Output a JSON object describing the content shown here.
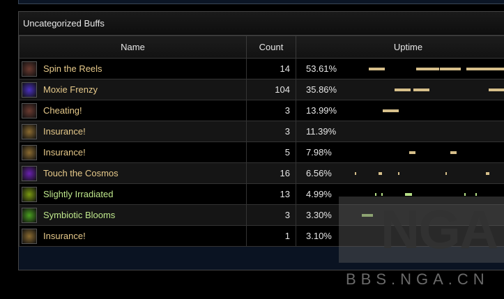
{
  "panel_title": "Uncategorized Buffs",
  "columns": [
    "Name",
    "Count",
    "Uptime"
  ],
  "colors": {
    "tan": "#d6bf8a",
    "green": "#b6df86",
    "name_tan": "#e6c98a",
    "name_green": "#bfe88c"
  },
  "rows": [
    {
      "name": "Spin the Reels",
      "icon": "spin-the-reels-icon",
      "iconColor": "#6a3a30",
      "count": "14",
      "uptime": "53.61%",
      "color": "tan",
      "segments": [
        [
          0.143,
          0.234
        ],
        [
          0.413,
          0.544
        ],
        [
          0.548,
          0.667
        ],
        [
          0.698,
          0.925
        ]
      ]
    },
    {
      "name": "Moxie Frenzy",
      "icon": "moxie-frenzy-icon",
      "iconColor": "#4a30c0",
      "count": "104",
      "uptime": "35.86%",
      "color": "tan",
      "segments": [
        [
          0.29,
          0.381
        ],
        [
          0.397,
          0.488
        ],
        [
          0.825,
          0.913
        ]
      ]
    },
    {
      "name": "Cheating!",
      "icon": "cheating-icon",
      "iconColor": "#6a3a30",
      "count": "3",
      "uptime": "13.99%",
      "color": "tan",
      "segments": [
        [
          0.222,
          0.313
        ]
      ]
    },
    {
      "name": "Insurance!",
      "icon": "insurance-scroll-icon",
      "iconColor": "#8a6a30",
      "count": "3",
      "uptime": "11.39%",
      "color": "tan",
      "segments": []
    },
    {
      "name": "Insurance!",
      "icon": "insurance-scroll-icon",
      "iconColor": "#8a6a30",
      "count": "5",
      "uptime": "7.98%",
      "color": "tan",
      "segments": [
        [
          0.373,
          0.409
        ],
        [
          0.607,
          0.643
        ]
      ]
    },
    {
      "name": "Touch the Cosmos",
      "icon": "touch-the-cosmos-icon",
      "iconColor": "#6a20b0",
      "count": "16",
      "uptime": "6.56%",
      "color": "tan",
      "segments": [
        [
          0.063,
          0.071
        ],
        [
          0.198,
          0.218
        ],
        [
          0.309,
          0.317
        ],
        [
          0.579,
          0.583
        ],
        [
          0.809,
          0.829
        ]
      ]
    },
    {
      "name": "Slightly Irradiated",
      "icon": "slightly-irradiated-icon",
      "iconColor": "#7a9a10",
      "count": "13",
      "uptime": "4.99%",
      "color": "green",
      "segments": [
        [
          0.179,
          0.187
        ],
        [
          0.214,
          0.222
        ],
        [
          0.349,
          0.389
        ],
        [
          0.687,
          0.694
        ],
        [
          0.75,
          0.758
        ]
      ]
    },
    {
      "name": "Symbiotic Blooms",
      "icon": "symbiotic-blooms-icon",
      "iconColor": "#4aa020",
      "count": "3",
      "uptime": "3.30%",
      "color": "green",
      "segments": [
        [
          0.103,
          0.167
        ]
      ]
    },
    {
      "name": "Insurance!",
      "icon": "insurance-scroll-icon",
      "iconColor": "#8a6a30",
      "count": "1",
      "uptime": "3.10%",
      "color": "tan",
      "segments": []
    }
  ],
  "watermark": {
    "logo": "NGA",
    "site": "BBS.NGA.CN"
  }
}
